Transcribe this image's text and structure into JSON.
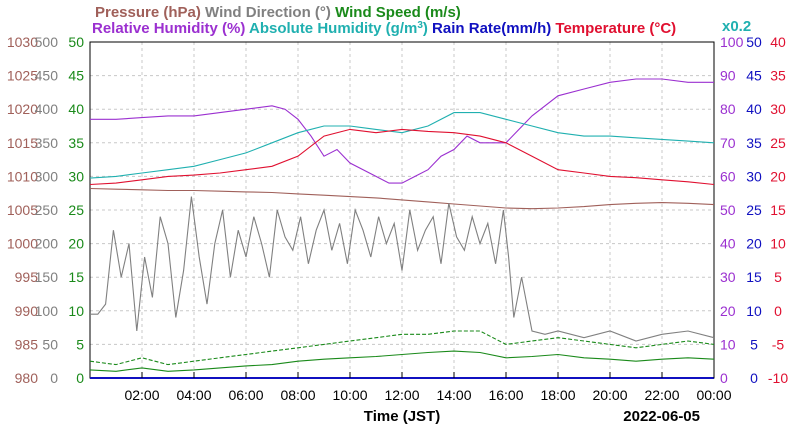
{
  "chart_data": {
    "type": "line",
    "xlabel": "Time (JST)",
    "date": "2022-06-05",
    "x_ticks": [
      "02:00",
      "04:00",
      "06:00",
      "08:00",
      "10:00",
      "12:00",
      "14:00",
      "16:00",
      "18:00",
      "20:00",
      "22:00",
      "00:00"
    ],
    "x_range_hours": [
      0,
      24
    ],
    "legend_row1": [
      {
        "text": "Pressure (hPa)",
        "color": "#a0605a"
      },
      {
        "text": "Wind Direction (°)",
        "color": "#808080"
      },
      {
        "text": "Wind Speed (m/s)",
        "color": "#1a8a1a"
      }
    ],
    "legend_row2": [
      {
        "text": "Relative Humidity (%)",
        "color": "#9b30d0"
      },
      {
        "text": "Absolute Humidity (g/m",
        "sup": "3",
        "after": ")",
        "color": "#20b0b0"
      },
      {
        "text": "Rain Rate(mm/h)",
        "color": "#1010c0"
      },
      {
        "text": "Temperature (°C)",
        "color": "#e01030"
      }
    ],
    "scale_note": "x0.2",
    "axes": {
      "pressure": {
        "color": "#a0605a",
        "ticks": [
          "980",
          "985",
          "990",
          "995",
          "1000",
          "1005",
          "1010",
          "1015",
          "1020",
          "1025",
          "1030"
        ],
        "range": [
          980,
          1030
        ]
      },
      "wind_direction": {
        "color": "#808080",
        "ticks": [
          "0",
          "50",
          "100",
          "150",
          "200",
          "250",
          "300",
          "350",
          "400",
          "450",
          "500"
        ],
        "range": [
          0,
          500
        ]
      },
      "wind_speed": {
        "color": "#1a8a1a",
        "ticks": [
          "0",
          "5",
          "10",
          "15",
          "20",
          "25",
          "30",
          "35",
          "40",
          "45",
          "50"
        ],
        "range": [
          0,
          50
        ]
      },
      "humidity": {
        "color": "#9b30d0",
        "ticks": [
          "0",
          "10",
          "20",
          "30",
          "40",
          "50",
          "60",
          "70",
          "80",
          "90",
          "100"
        ],
        "range": [
          0,
          100
        ]
      },
      "rain": {
        "color": "#1010c0",
        "ticks": [
          "0",
          "5",
          "10",
          "15",
          "20",
          "25",
          "30",
          "35",
          "40",
          "45",
          "50"
        ],
        "range": [
          0,
          50
        ]
      },
      "temperature": {
        "color": "#e01030",
        "ticks": [
          "-10",
          "-5",
          "0",
          "5",
          "10",
          "15",
          "20",
          "25",
          "30",
          "35",
          "40"
        ],
        "range": [
          -10,
          40
        ]
      }
    },
    "series": [
      {
        "name": "Pressure (hPa)",
        "color": "#a0605a",
        "x": [
          0,
          1,
          2,
          3,
          4,
          5,
          6,
          7,
          8,
          9,
          10,
          11,
          12,
          13,
          14,
          15,
          16,
          17,
          18,
          19,
          20,
          21,
          22,
          23,
          24
        ],
        "y": [
          1008.2,
          1008.1,
          1008.0,
          1007.9,
          1007.9,
          1007.8,
          1007.7,
          1007.6,
          1007.4,
          1007.2,
          1007.0,
          1006.8,
          1006.5,
          1006.2,
          1005.9,
          1005.6,
          1005.3,
          1005.2,
          1005.3,
          1005.5,
          1005.8,
          1006.0,
          1006.1,
          1006.0,
          1005.8
        ]
      },
      {
        "name": "Relative Humidity (%)",
        "color": "#9b30d0",
        "x": [
          0,
          1,
          2,
          3,
          4,
          5,
          6,
          7,
          7.5,
          8,
          8.5,
          9,
          9.5,
          10,
          11,
          11.5,
          12,
          12.5,
          13,
          13.5,
          14,
          14.5,
          15,
          16,
          17,
          18,
          19,
          20,
          21,
          22,
          23,
          24
        ],
        "y": [
          77,
          77,
          77.5,
          78,
          78,
          79,
          80,
          81,
          80,
          77,
          72,
          66,
          68,
          64,
          60,
          58,
          58,
          60,
          62,
          66,
          68,
          72,
          70,
          70,
          78,
          84,
          86,
          88,
          89,
          89,
          88,
          88
        ]
      },
      {
        "name": "Absolute Humidity (g/m3)",
        "color": "#20b0b0",
        "x": [
          0,
          1,
          2,
          3,
          4,
          5,
          6,
          7,
          8,
          9,
          10,
          11,
          12,
          13,
          14,
          15,
          16,
          17,
          18,
          19,
          20,
          21,
          22,
          23,
          24
        ],
        "y": [
          59.5,
          60,
          61,
          62,
          63,
          65,
          67,
          70,
          73,
          75,
          75,
          74,
          73,
          75,
          79,
          79,
          77,
          75,
          73,
          72,
          72,
          71.5,
          71,
          70.5,
          70
        ]
      },
      {
        "name": "Rain Rate(mm/h)",
        "color": "#1010c0",
        "x": [
          0,
          24
        ],
        "y": [
          0,
          0
        ]
      },
      {
        "name": "Temperature (°C)",
        "color": "#e01030",
        "x": [
          0,
          1,
          2,
          3,
          4,
          5,
          6,
          7,
          8,
          9,
          10,
          11,
          12,
          13,
          14,
          15,
          16,
          17,
          18,
          19,
          20,
          21,
          22,
          23,
          24
        ],
        "y": [
          18.8,
          19,
          19.5,
          20,
          20.2,
          20.5,
          21,
          21.5,
          23,
          26,
          27,
          26.5,
          27,
          26.7,
          26.5,
          26,
          25,
          23,
          21,
          20.5,
          20,
          19.8,
          19.5,
          19.2,
          18.8
        ]
      },
      {
        "name": "Wind Direction (°)",
        "color": "#808080",
        "x": [
          0,
          0.3,
          0.6,
          0.9,
          1.2,
          1.5,
          1.8,
          2.1,
          2.4,
          2.7,
          3.0,
          3.3,
          3.6,
          3.9,
          4.2,
          4.5,
          4.8,
          5.1,
          5.4,
          5.7,
          6.0,
          6.3,
          6.6,
          6.9,
          7.2,
          7.5,
          7.8,
          8.1,
          8.4,
          8.7,
          9.0,
          9.3,
          9.6,
          9.9,
          10.2,
          10.5,
          10.8,
          11.1,
          11.4,
          11.7,
          12.0,
          12.3,
          12.6,
          12.9,
          13.2,
          13.5,
          13.8,
          14.1,
          14.4,
          14.7,
          15.0,
          15.3,
          15.6,
          15.9,
          16.1,
          16.3,
          16.6,
          17.0,
          17.5,
          18,
          19,
          20,
          21,
          22,
          23,
          24
        ],
        "y": [
          95,
          95,
          110,
          220,
          150,
          200,
          70,
          180,
          120,
          240,
          200,
          90,
          160,
          270,
          180,
          110,
          200,
          250,
          150,
          220,
          180,
          240,
          200,
          150,
          250,
          210,
          190,
          240,
          170,
          220,
          250,
          190,
          230,
          170,
          250,
          220,
          180,
          240,
          200,
          230,
          160,
          250,
          190,
          220,
          240,
          170,
          260,
          210,
          190,
          240,
          200,
          230,
          170,
          250,
          180,
          90,
          150,
          70,
          65,
          70,
          60,
          70,
          55,
          65,
          70,
          60
        ]
      },
      {
        "name": "Wind Speed (m/s)",
        "color": "#1a8a1a",
        "x": [
          0,
          1,
          2,
          3,
          4,
          5,
          6,
          7,
          8,
          9,
          10,
          11,
          12,
          13,
          14,
          15,
          16,
          17,
          18,
          19,
          20,
          21,
          22,
          23,
          24
        ],
        "y": [
          1.2,
          1.0,
          1.5,
          1.0,
          1.2,
          1.5,
          1.8,
          2.0,
          2.5,
          2.8,
          3.0,
          3.2,
          3.5,
          3.8,
          4.0,
          3.8,
          3.0,
          3.2,
          3.5,
          3.0,
          2.8,
          2.5,
          2.8,
          3.0,
          2.8
        ]
      },
      {
        "name": "Wind Speed gust (m/s)",
        "color": "#1a8a1a",
        "x": [
          0,
          1,
          2,
          3,
          4,
          5,
          6,
          7,
          8,
          9,
          10,
          11,
          12,
          13,
          14,
          15,
          16,
          17,
          18,
          19,
          20,
          21,
          22,
          23,
          24
        ],
        "y": [
          2.5,
          2.0,
          3.0,
          2.0,
          2.5,
          3.0,
          3.5,
          4.0,
          4.5,
          5.0,
          5.5,
          6.0,
          6.5,
          6.5,
          7.0,
          7.0,
          5.0,
          5.5,
          6.0,
          5.5,
          5.0,
          4.5,
          5.0,
          5.5,
          5.0
        ]
      }
    ]
  }
}
